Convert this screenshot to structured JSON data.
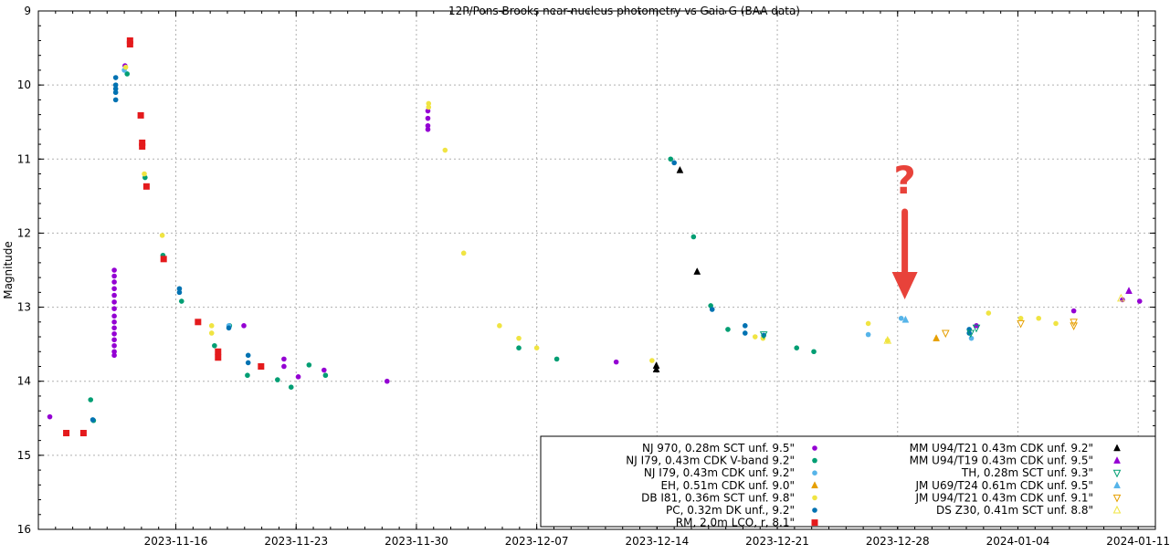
{
  "chart_data": {
    "type": "scatter",
    "title": "12P/Pons-Brooks near-nucleus photometry vs Gaia G (BAA data)",
    "ylabel": "Magnitude",
    "xlabel": "",
    "x_is_date": true,
    "xlim": [
      "2023-11-08",
      "2024-01-12"
    ],
    "ylim": [
      16,
      9
    ],
    "y_inverted": true,
    "grid": true,
    "legend_position": "bottom-right",
    "x_ticks": [
      "2023-11-16",
      "2023-11-23",
      "2023-11-30",
      "2023-12-07",
      "2023-12-14",
      "2023-12-21",
      "2023-12-28",
      "2024-01-04",
      "2024-01-11"
    ],
    "y_ticks": [
      9,
      10,
      11,
      12,
      13,
      14,
      15,
      16
    ],
    "annotation": {
      "text": "?",
      "x": "2023-12-28 10:00",
      "color": "#e8423a"
    },
    "series": [
      {
        "name": "NJ 970, 0.28m SCT unf. 9.5\"",
        "color": "#9400d3",
        "marker": "dot",
        "points": [
          [
            "2023-11-08 16:00",
            14.48
          ],
          [
            "2023-11-12 10:00",
            12.5
          ],
          [
            "2023-11-12 10:00",
            12.58
          ],
          [
            "2023-11-12 10:00",
            12.66
          ],
          [
            "2023-11-12 10:00",
            12.75
          ],
          [
            "2023-11-12 10:00",
            12.84
          ],
          [
            "2023-11-12 10:00",
            12.93
          ],
          [
            "2023-11-12 10:00",
            13.02
          ],
          [
            "2023-11-12 10:00",
            13.12
          ],
          [
            "2023-11-12 10:00",
            13.2
          ],
          [
            "2023-11-12 10:00",
            13.28
          ],
          [
            "2023-11-12 10:00",
            13.36
          ],
          [
            "2023-11-12 10:00",
            13.44
          ],
          [
            "2023-11-12 10:00",
            13.52
          ],
          [
            "2023-11-12 10:00",
            13.6
          ],
          [
            "2023-11-12 10:00",
            13.65
          ],
          [
            "2023-11-13 01:00",
            9.74
          ],
          [
            "2023-11-19 23:00",
            13.25
          ],
          [
            "2023-11-22 07:00",
            13.8
          ],
          [
            "2023-11-22 07:00",
            13.7
          ],
          [
            "2023-11-23 03:00",
            13.94
          ],
          [
            "2023-11-24 15:00",
            13.85
          ],
          [
            "2023-11-28 07:00",
            14.0
          ],
          [
            "2023-11-30 16:00",
            10.35
          ],
          [
            "2023-11-30 16:00",
            10.45
          ],
          [
            "2023-11-30 16:00",
            10.55
          ],
          [
            "2023-11-30 16:00",
            10.6
          ],
          [
            "2023-12-11 15:00",
            13.74
          ],
          [
            "2024-01-01 14:00",
            13.25
          ],
          [
            "2024-01-07 06:00",
            13.05
          ],
          [
            "2024-01-10 02:00",
            12.9
          ],
          [
            "2024-01-11 02:00",
            12.92
          ]
        ]
      },
      {
        "name": "NJ I79, 0.43m CDK V-band 9.2\"",
        "color": "#009e73",
        "marker": "dot",
        "points": [
          [
            "2023-11-11 01:00",
            14.25
          ],
          [
            "2023-11-11 05:00",
            14.53
          ],
          [
            "2023-11-13 04:00",
            9.85
          ],
          [
            "2023-11-14 05:00",
            11.25
          ],
          [
            "2023-11-15 06:00",
            12.3
          ],
          [
            "2023-11-16 08:00",
            12.92
          ],
          [
            "2023-11-18 06:00",
            13.52
          ],
          [
            "2023-11-19 03:00",
            13.25
          ],
          [
            "2023-11-20 04:00",
            13.92
          ],
          [
            "2023-11-21 22:00",
            13.98
          ],
          [
            "2023-11-22 17:00",
            14.08
          ],
          [
            "2023-11-23 18:00",
            13.78
          ],
          [
            "2023-11-24 17:00",
            13.92
          ],
          [
            "2023-12-05 23:00",
            13.55
          ],
          [
            "2023-12-08 04:00",
            13.7
          ],
          [
            "2023-12-14 19:00",
            11.0
          ],
          [
            "2023-12-16 03:00",
            12.05
          ],
          [
            "2023-12-17 03:00",
            12.98
          ],
          [
            "2023-12-18 03:00",
            13.3
          ],
          [
            "2023-12-22 03:00",
            13.55
          ],
          [
            "2023-12-23 03:00",
            13.6
          ]
        ]
      },
      {
        "name": "NJ I79, 0.43m CDK unf. 9.2\"",
        "color": "#56b4e9",
        "marker": "dot",
        "points": [
          [
            "2023-11-13 00:00",
            9.8
          ],
          [
            "2023-11-19 02:00",
            13.25
          ],
          [
            "2023-12-26 07:00",
            13.37
          ],
          [
            "2023-12-28 05:00",
            13.15
          ],
          [
            "2024-01-01 07:00",
            13.42
          ]
        ]
      },
      {
        "name": "EH, 0.51m CDK unf. 9.0\"",
        "color": "#e69f00",
        "marker": "triangle-up",
        "points": [
          [
            "2023-12-30 06:00",
            13.42
          ]
        ]
      },
      {
        "name": "DB I81, 0.36m SCT unf. 9.8\"",
        "color": "#f0e442",
        "marker": "dot",
        "points": [
          [
            "2023-11-13 02:00",
            9.76
          ],
          [
            "2023-11-14 04:00",
            11.2
          ],
          [
            "2023-11-15 05:00",
            12.03
          ],
          [
            "2023-11-18 02:00",
            13.25
          ],
          [
            "2023-11-18 02:00",
            13.35
          ],
          [
            "2023-11-30 17:00",
            10.25
          ],
          [
            "2023-11-30 17:00",
            10.3
          ],
          [
            "2023-12-01 16:00",
            10.88
          ],
          [
            "2023-12-02 18:00",
            12.27
          ],
          [
            "2023-12-04 20:00",
            13.25
          ],
          [
            "2023-12-05 23:00",
            13.42
          ],
          [
            "2023-12-07 00:00",
            13.55
          ],
          [
            "2023-12-13 17:00",
            13.72
          ],
          [
            "2023-12-19 17:00",
            13.4
          ],
          [
            "2023-12-20 04:00",
            13.42
          ],
          [
            "2023-12-26 07:00",
            13.22
          ],
          [
            "2023-12-27 10:00",
            13.45
          ],
          [
            "2024-01-02 07:00",
            13.08
          ],
          [
            "2024-01-04 04:00",
            13.15
          ],
          [
            "2024-01-05 05:00",
            13.15
          ],
          [
            "2024-01-06 05:00",
            13.22
          ]
        ]
      },
      {
        "name": "PC, 0.32m DK unf., 9.2\"",
        "color": "#0072b2",
        "marker": "dot",
        "points": [
          [
            "2023-11-11 04:00",
            14.52
          ],
          [
            "2023-11-12 12:00",
            9.9
          ],
          [
            "2023-11-12 12:00",
            10.0
          ],
          [
            "2023-11-12 12:00",
            10.05
          ],
          [
            "2023-11-12 12:00",
            10.1
          ],
          [
            "2023-11-12 12:00",
            10.2
          ],
          [
            "2023-11-16 05:00",
            12.75
          ],
          [
            "2023-11-16 05:00",
            12.8
          ],
          [
            "2023-11-19 02:00",
            13.28
          ],
          [
            "2023-11-20 05:00",
            13.65
          ],
          [
            "2023-11-20 05:00",
            13.75
          ],
          [
            "2023-12-15 00:00",
            11.05
          ],
          [
            "2023-12-17 05:00",
            13.03
          ],
          [
            "2023-12-19 03:00",
            13.25
          ],
          [
            "2023-12-19 03:00",
            13.35
          ],
          [
            "2023-12-20 05:00",
            13.38
          ],
          [
            "2024-01-01 04:00",
            13.3
          ],
          [
            "2024-01-01 04:00",
            13.35
          ]
        ]
      },
      {
        "name": "RM, 2.0m LCO, r, 8.1\"",
        "color": "#e41a1c",
        "marker": "square",
        "points": [
          [
            "2023-11-09 15:00",
            14.7
          ],
          [
            "2023-11-10 15:00",
            14.7
          ],
          [
            "2023-11-13 08:00",
            9.4
          ],
          [
            "2023-11-13 08:00",
            9.45
          ],
          [
            "2023-11-13 23:00",
            10.41
          ],
          [
            "2023-11-14 01:00",
            10.78
          ],
          [
            "2023-11-14 01:00",
            10.83
          ],
          [
            "2023-11-14 07:00",
            11.37
          ],
          [
            "2023-11-15 07:00",
            12.35
          ],
          [
            "2023-11-17 07:00",
            13.2
          ],
          [
            "2023-11-18 11:00",
            13.6
          ],
          [
            "2023-11-18 11:00",
            13.68
          ],
          [
            "2023-11-20 23:00",
            13.8
          ]
        ]
      },
      {
        "name": "MM U94/T21 0.43m CDK unf. 9.2\"",
        "color": "#000000",
        "marker": "triangle-up",
        "points": [
          [
            "2023-12-13 23:00",
            13.79
          ],
          [
            "2023-12-13 23:00",
            13.84
          ],
          [
            "2023-12-15 08:00",
            11.15
          ],
          [
            "2023-12-16 08:00",
            12.52
          ]
        ]
      },
      {
        "name": "MM U94/T19 0.43m CDK unf. 9.5\"",
        "color": "#9400d3",
        "marker": "triangle-up",
        "points": [
          [
            "2024-01-10 11:00",
            12.78
          ]
        ]
      },
      {
        "name": "TH, 0.28m SCT unf. 9.3\"",
        "color": "#009e73",
        "marker": "triangle-down-open",
        "points": [
          [
            "2023-12-20 05:00",
            13.37
          ],
          [
            "2024-01-01 06:00",
            13.35
          ],
          [
            "2024-01-01 14:00",
            13.28
          ]
        ]
      },
      {
        "name": "JM U69/T24 0.61m CDK unf. 9.5\"",
        "color": "#56b4e9",
        "marker": "triangle-up",
        "points": [
          [
            "2023-12-28 11:00",
            13.17
          ]
        ]
      },
      {
        "name": "JM U94/T21 0.43m CDK unf. 9.1\"",
        "color": "#e69f00",
        "marker": "triangle-down-open",
        "points": [
          [
            "2023-12-30 19:00",
            13.35
          ],
          [
            "2024-01-04 04:00",
            13.22
          ],
          [
            "2024-01-07 06:00",
            13.2
          ],
          [
            "2024-01-07 06:00",
            13.25
          ]
        ]
      },
      {
        "name": "DS Z30, 0.41m SCT unf. 8.8\"",
        "color": "#f0e442",
        "marker": "triangle-up-open",
        "points": [
          [
            "2023-12-27 10:00",
            13.45
          ],
          [
            "2024-01-10 00:00",
            12.88
          ]
        ]
      }
    ]
  }
}
